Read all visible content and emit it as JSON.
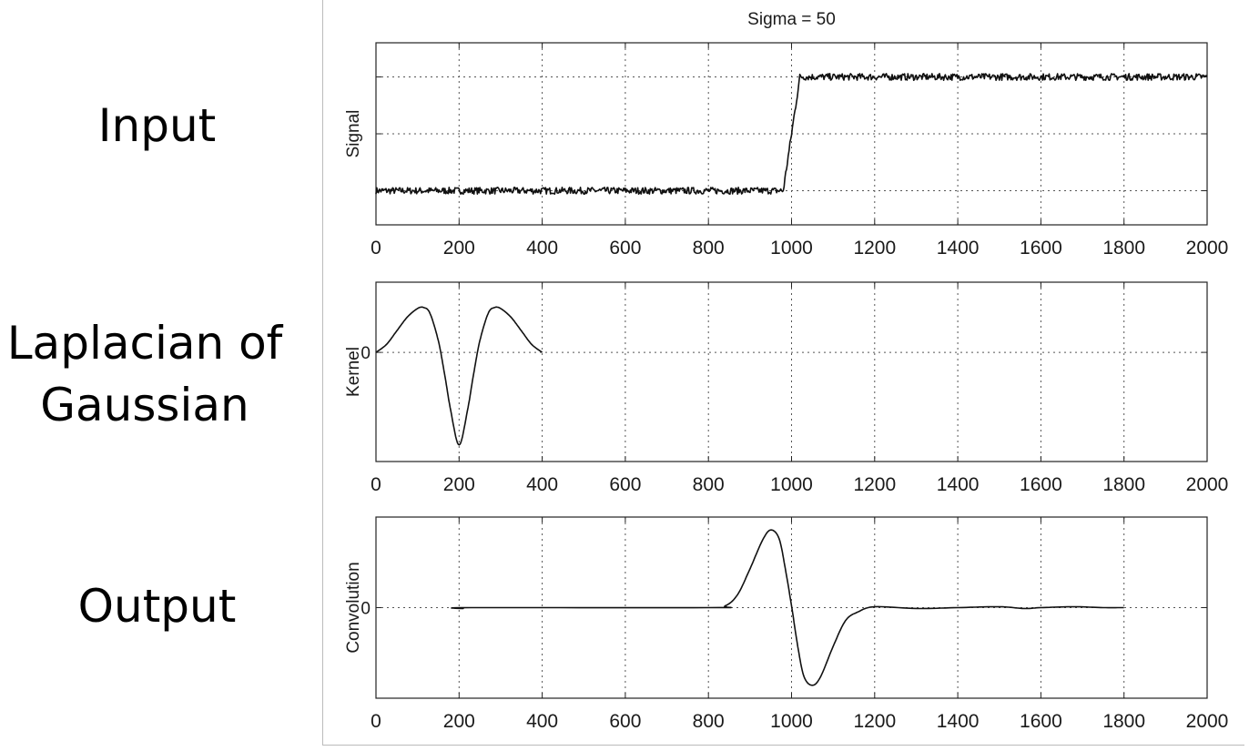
{
  "labels": {
    "input": "Input",
    "log_line1": "Laplacian of",
    "log_line2": "Gaussian",
    "output": "Output"
  },
  "chart_data": [
    {
      "type": "line",
      "title": "Sigma = 50",
      "ylabel": "Signal",
      "xlim": [
        0,
        2000
      ],
      "xticks": [
        0,
        200,
        400,
        600,
        800,
        1000,
        1200,
        1400,
        1600,
        1800,
        2000
      ],
      "yticks": [],
      "grid": true,
      "series": [
        {
          "x": [
            0,
            980,
            1000,
            1020,
            2000
          ],
          "y": [
            0,
            0,
            0.5,
            1,
            1
          ],
          "noise": 0.03
        }
      ]
    },
    {
      "type": "line",
      "title": "",
      "ylabel": "Kernel",
      "xlim": [
        0,
        2000
      ],
      "xticks": [
        0,
        200,
        400,
        600,
        800,
        1000,
        1200,
        1400,
        1600,
        1800,
        2000
      ],
      "yticks": [
        "0"
      ],
      "grid": true,
      "series": [
        {
          "x": [
            0,
            25,
            50,
            75,
            100,
            115,
            130,
            150,
            165,
            180,
            200,
            220,
            235,
            250,
            270,
            285,
            300,
            325,
            350,
            375,
            400
          ],
          "y": [
            0,
            0.08,
            0.22,
            0.36,
            0.45,
            0.46,
            0.4,
            0.12,
            -0.22,
            -0.6,
            -0.95,
            -0.6,
            -0.22,
            0.12,
            0.4,
            0.46,
            0.45,
            0.36,
            0.22,
            0.08,
            0
          ]
        }
      ]
    },
    {
      "type": "line",
      "title": "",
      "ylabel": "Convolution",
      "xlim": [
        0,
        2000
      ],
      "xticks": [
        0,
        200,
        400,
        600,
        800,
        1000,
        1200,
        1400,
        1600,
        1800,
        2000
      ],
      "yticks": [
        "0"
      ],
      "grid": true,
      "series": [
        {
          "x": [
            200,
            210,
            230,
            800,
            840,
            870,
            900,
            930,
            950,
            970,
            985,
            1000,
            1015,
            1030,
            1050,
            1070,
            1100,
            1130,
            1160,
            1200,
            1300,
            1400,
            1500,
            1560,
            1600,
            1680,
            1750,
            1800
          ],
          "y": [
            0,
            -0.01,
            0,
            0,
            0.02,
            0.15,
            0.45,
            0.78,
            0.9,
            0.8,
            0.45,
            0.02,
            -0.45,
            -0.8,
            -0.9,
            -0.8,
            -0.45,
            -0.15,
            -0.05,
            0.01,
            -0.01,
            0,
            0.01,
            -0.01,
            0,
            0.01,
            0,
            0
          ]
        }
      ]
    }
  ]
}
